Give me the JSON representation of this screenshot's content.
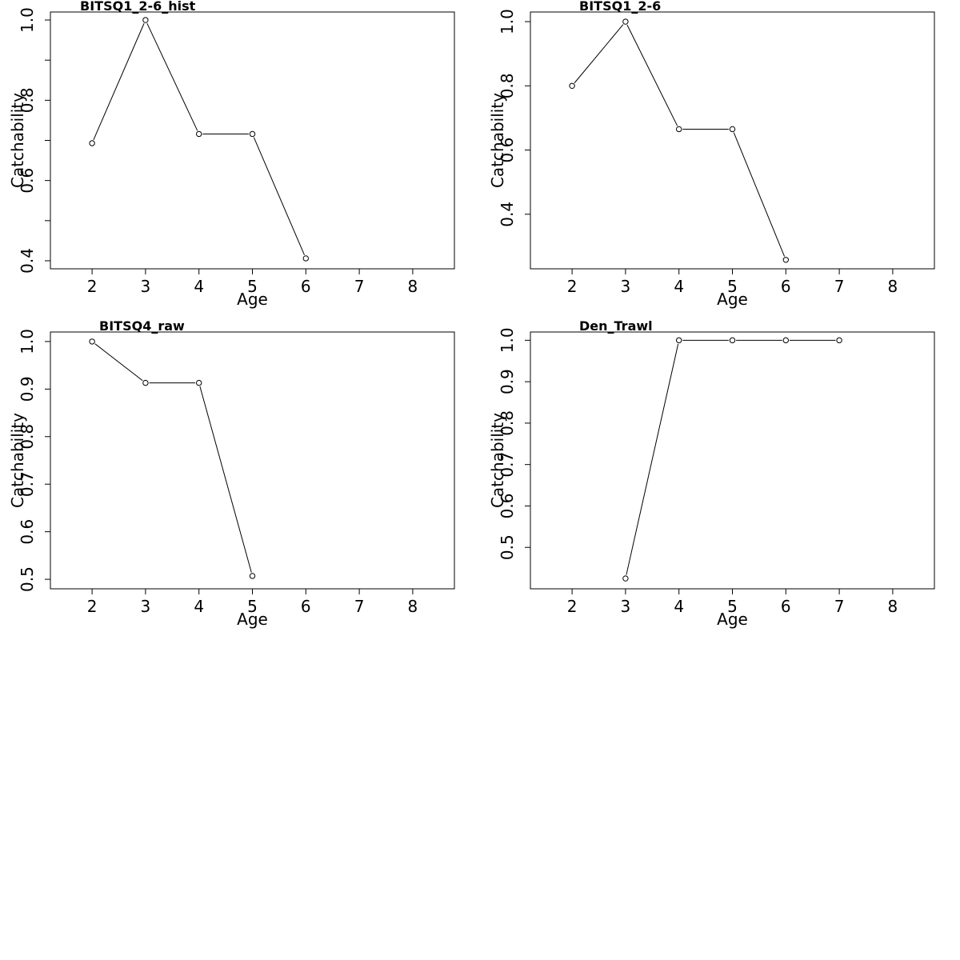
{
  "chart_data": [
    {
      "type": "line",
      "title": "BITSQ1_2-6_hist",
      "xlabel": "Age",
      "ylabel": "Catchability",
      "xlim": [
        1.22,
        8.78
      ],
      "ylim": [
        0.38,
        1.02
      ],
      "x_ticks": [
        2,
        3,
        4,
        5,
        6,
        7,
        8
      ],
      "y_ticks": [
        0.4,
        0.5,
        0.6,
        0.7,
        0.8,
        0.9,
        1.0
      ],
      "y_tick_labels": [
        "0.4",
        "",
        "0.6",
        "",
        "0.8",
        "",
        "1.0"
      ],
      "series": [
        {
          "x": [
            2,
            3,
            4,
            5,
            6
          ],
          "y": [
            0.693,
            1.0,
            0.716,
            0.716,
            0.406
          ]
        }
      ]
    },
    {
      "type": "line",
      "title": "BITSQ1_2-6",
      "xlabel": "Age",
      "ylabel": "Catchability",
      "xlim": [
        1.22,
        8.78
      ],
      "ylim": [
        0.23,
        1.03
      ],
      "x_ticks": [
        2,
        3,
        4,
        5,
        6,
        7,
        8
      ],
      "y_ticks": [
        0.4,
        0.6,
        0.8,
        1.0
      ],
      "y_tick_labels": [
        "0.4",
        "0.6",
        "0.8",
        "1.0"
      ],
      "series": [
        {
          "x": [
            2,
            3,
            4,
            5,
            6
          ],
          "y": [
            0.8,
            1.0,
            0.665,
            0.665,
            0.258
          ]
        }
      ]
    },
    {
      "type": "line",
      "title": "BITSQ4_raw",
      "xlabel": "Age",
      "ylabel": "Catchability",
      "xlim": [
        1.22,
        8.78
      ],
      "ylim": [
        0.48,
        1.02
      ],
      "x_ticks": [
        2,
        3,
        4,
        5,
        6,
        7,
        8
      ],
      "y_ticks": [
        0.5,
        0.6,
        0.7,
        0.8,
        0.9,
        1.0
      ],
      "y_tick_labels": [
        "0.5",
        "0.6",
        "0.7",
        "0.8",
        "0.9",
        "1.0"
      ],
      "series": [
        {
          "x": [
            2,
            3,
            4,
            5
          ],
          "y": [
            1.0,
            0.913,
            0.913,
            0.507
          ]
        }
      ]
    },
    {
      "type": "line",
      "title": "Den_Trawl",
      "xlabel": "Age",
      "ylabel": "Catchability",
      "xlim": [
        1.22,
        8.78
      ],
      "ylim": [
        0.4,
        1.02
      ],
      "x_ticks": [
        2,
        3,
        4,
        5,
        6,
        7,
        8
      ],
      "y_ticks": [
        0.5,
        0.6,
        0.7,
        0.8,
        0.9,
        1.0
      ],
      "y_tick_labels": [
        "0.5",
        "0.6",
        "0.7",
        "0.8",
        "0.9",
        "1.0"
      ],
      "series": [
        {
          "x": [
            3,
            4,
            5,
            6,
            7
          ],
          "y": [
            0.425,
            1.0,
            1.0,
            1.0,
            1.0
          ]
        }
      ]
    }
  ]
}
